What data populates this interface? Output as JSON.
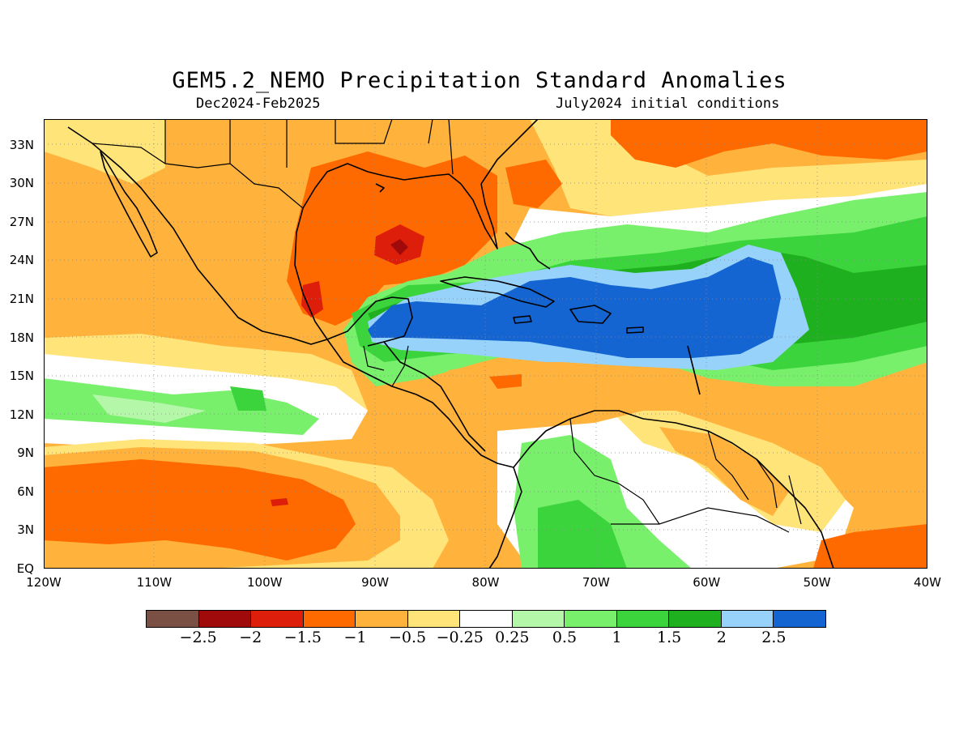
{
  "header": {
    "title": "GEM5.2_NEMO Precipitation Standard Anomalies",
    "period": "Dec2024-Feb2025",
    "init": "July2024 initial conditions"
  },
  "map": {
    "lat_labels": [
      "33N",
      "30N",
      "27N",
      "24N",
      "21N",
      "18N",
      "15N",
      "12N",
      "9N",
      "6N",
      "3N",
      "EQ"
    ],
    "lon_labels": [
      "120W",
      "110W",
      "100W",
      "90W",
      "80W",
      "70W",
      "60W",
      "50W",
      "40W"
    ],
    "lat_values": [
      33,
      30,
      27,
      24,
      21,
      18,
      15,
      12,
      9,
      6,
      3,
      0
    ],
    "lon_values": [
      -120,
      -110,
      -100,
      -90,
      -80,
      -70,
      -60,
      -50,
      -40
    ],
    "extent": {
      "lon_min": -120,
      "lon_max": -40,
      "lat_min": 0,
      "lat_max": 35
    }
  },
  "colorbar": {
    "colors": [
      "#7a5045",
      "#a00a0a",
      "#dc1e0a",
      "#ff6a00",
      "#ffb23c",
      "#ffe47a",
      "#ffffff",
      "#b4f7a8",
      "#78f06c",
      "#3cd43c",
      "#1eb01e",
      "#96d2fa",
      "#1464d2"
    ],
    "labels": [
      "-2.5",
      "-2",
      "-1.5",
      "-1",
      "-0.5",
      "-0.25",
      "0.25",
      "0.5",
      "1",
      "1.5",
      "2",
      "2.5"
    ]
  }
}
